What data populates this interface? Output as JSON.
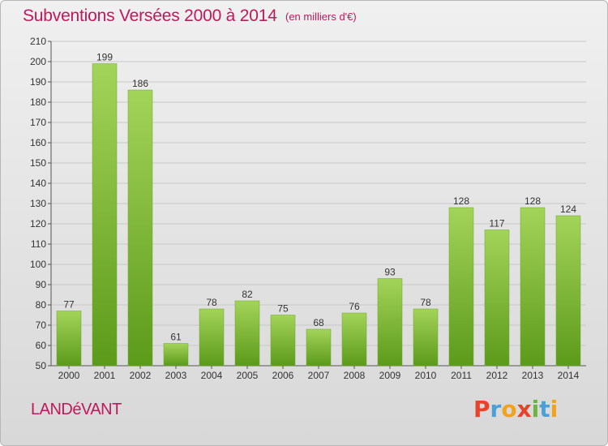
{
  "header": {
    "title": "Subventions Versées 2000 à 2014",
    "unit": "(en milliers d'€)"
  },
  "footer": {
    "commune": "LANDéVANT",
    "logo": [
      "P",
      "r",
      "o",
      "x",
      "i",
      "t",
      "i"
    ]
  },
  "colors": {
    "accent": "#c0185a",
    "bar_top": "#a3d45a",
    "bar_bottom": "#5c9a1a",
    "grid": "#c8c8c8"
  },
  "chart_data": {
    "type": "bar",
    "categories": [
      "2000",
      "2001",
      "2002",
      "2003",
      "2004",
      "2005",
      "2006",
      "2007",
      "2008",
      "2009",
      "2010",
      "2011",
      "2012",
      "2013",
      "2014"
    ],
    "values": [
      77,
      199,
      186,
      61,
      78,
      82,
      75,
      68,
      76,
      93,
      78,
      128,
      117,
      128,
      124
    ],
    "ylim": [
      50,
      210
    ],
    "yticks": [
      50,
      60,
      70,
      80,
      90,
      100,
      110,
      120,
      130,
      140,
      150,
      160,
      170,
      180,
      190,
      200,
      210
    ],
    "grid": true,
    "title": "Subventions Versées 2000 à 2014",
    "xlabel": "",
    "ylabel": ""
  }
}
